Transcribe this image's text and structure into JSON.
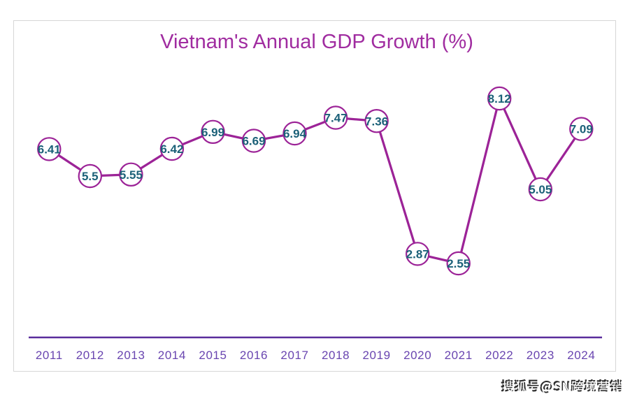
{
  "chart_data": {
    "type": "line",
    "title": "Vietnam's Annual GDP Growth (%)",
    "categories": [
      2011,
      2012,
      2013,
      2014,
      2015,
      2016,
      2017,
      2018,
      2019,
      2020,
      2021,
      2022,
      2023,
      2024
    ],
    "values": [
      6.41,
      5.5,
      5.55,
      6.42,
      6.99,
      6.69,
      6.94,
      7.47,
      7.36,
      2.87,
      2.55,
      8.12,
      5.05,
      7.09
    ],
    "series_name": "Annual GDP Growth (%)",
    "xlabel": "",
    "ylabel": "",
    "ylim": [
      0,
      11.9
    ],
    "grid": false,
    "legend": false,
    "data_labels": true,
    "marker": "circle",
    "colors": {
      "line": "#9c2397",
      "marker_fill": "#ffffff",
      "marker_stroke": "#9c2397",
      "data_label": "#1b6078",
      "title": "#a02ca0",
      "axis_line": "#5a2d9c",
      "tick_label": "#6945b0",
      "chart_border": "#d6d6d6",
      "background": "#ffffff"
    }
  },
  "watermark": {
    "text": "搜狐号@SN跨境营销"
  }
}
